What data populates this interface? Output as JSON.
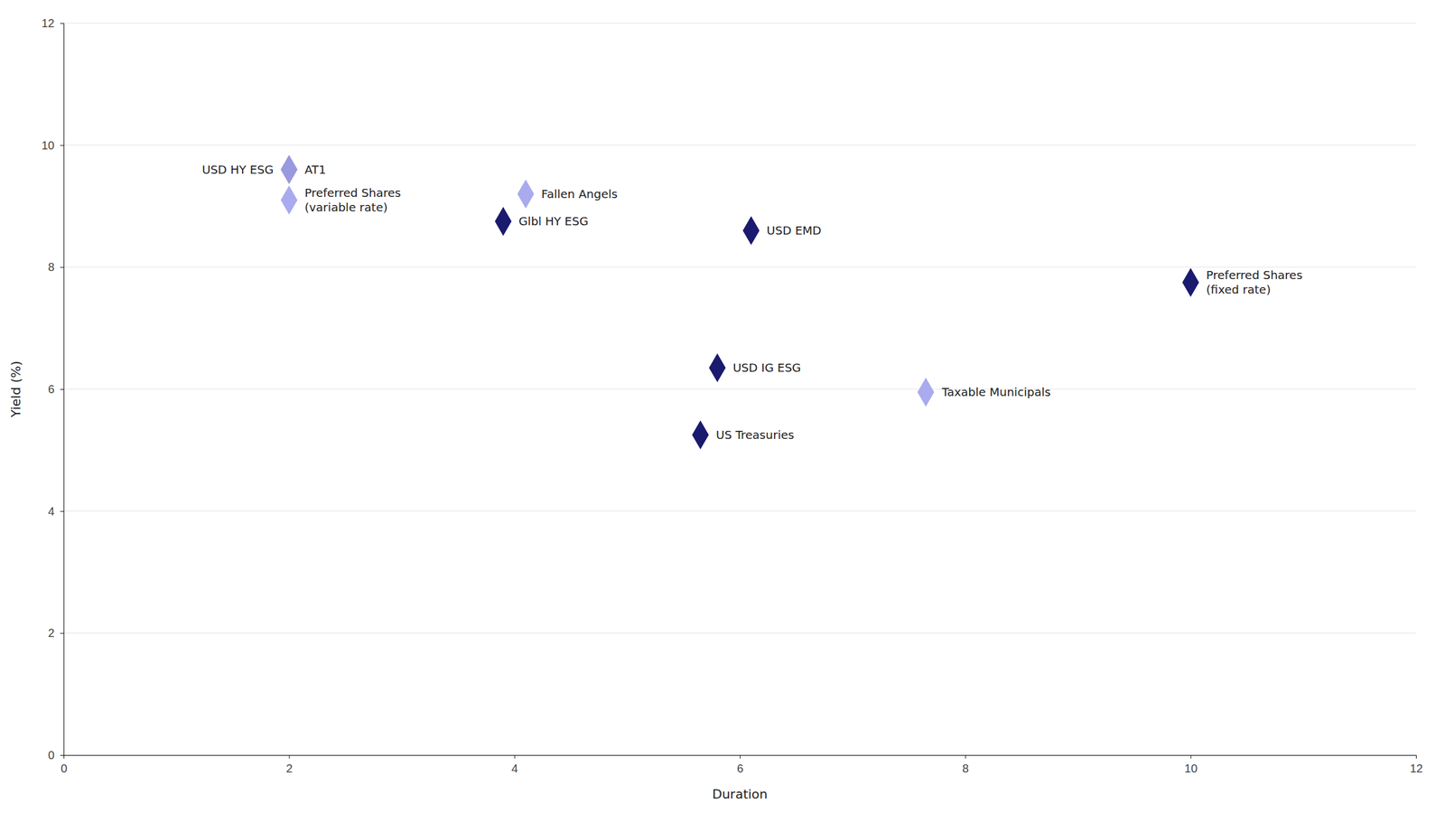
{
  "chart_data": {
    "type": "scatter",
    "xlabel": "Duration",
    "ylabel": "Yield (%)",
    "xlim": [
      0,
      12
    ],
    "ylim": [
      0,
      12
    ],
    "xticks": [
      0,
      2,
      4,
      6,
      8,
      10,
      12
    ],
    "yticks": [
      0,
      2,
      4,
      6,
      8,
      10,
      12
    ],
    "grid": "y",
    "marker": "diamond",
    "x": [
      2.0,
      2.0,
      2.0,
      4.1,
      3.9,
      6.1,
      10.0,
      5.8,
      7.65,
      5.65
    ],
    "values": [
      9.6,
      9.6,
      9.1,
      9.2,
      8.75,
      8.6,
      7.75,
      6.35,
      5.95,
      5.25
    ],
    "labels": [
      "AT1",
      "USD HY ESG",
      "Preferred Shares\n(variable rate)",
      "Fallen Angels",
      "Glbl HY ESG",
      "USD EMD",
      "Preferred Shares\n(fixed rate)",
      "USD IG ESG",
      "Taxable Municipals",
      "US Treasuries"
    ],
    "colors": [
      "#9999dd",
      "#9999dd",
      "#aaaaee",
      "#aaaaee",
      "#1a1a6e",
      "#1a1a6e",
      "#1a1a6e",
      "#1a1a6e",
      "#aaaaee",
      "#1a1a6e"
    ]
  }
}
